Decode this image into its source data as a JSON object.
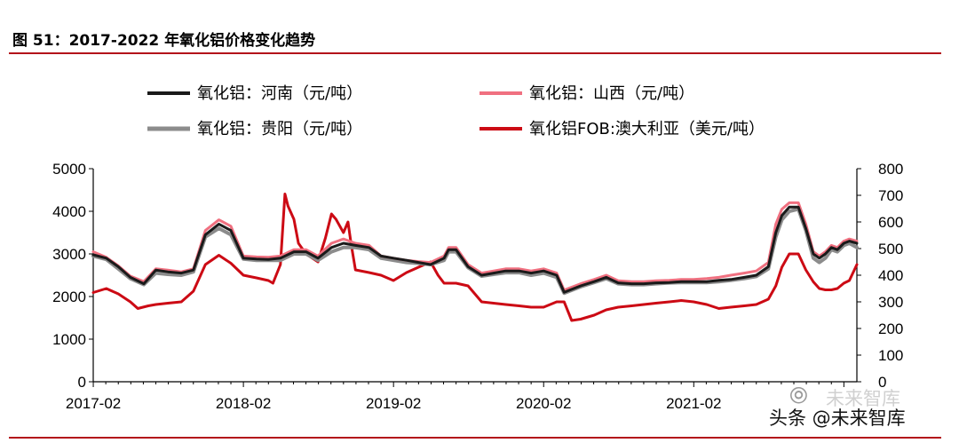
{
  "figure_title": "图 51：2017-2022 年氧化铝价格变化趋势",
  "watermarks": {
    "icon": "wechat-icon",
    "secondary": "未来智库",
    "primary": "头条 @未来智库"
  },
  "chart_data": {
    "type": "line",
    "title": "",
    "xlabel": "",
    "ylabel": "",
    "x_tick_labels": [
      "2017-02",
      "2018-02",
      "2019-02",
      "2020-02",
      "2021-02"
    ],
    "x_range": [
      2017.083,
      2022.17
    ],
    "y_left": {
      "range": [
        0,
        5000
      ],
      "ticks": [
        "0",
        "1000",
        "2000",
        "3000",
        "4000",
        "5000"
      ]
    },
    "y_right": {
      "range": [
        0,
        800
      ],
      "ticks": [
        "0",
        "100",
        "200",
        "300",
        "400",
        "500",
        "600",
        "700",
        "800"
      ]
    },
    "grid": false,
    "legend_position": "top",
    "colors": {
      "henan": "#1a1a1a",
      "shanxi": "#f07080",
      "guiyang": "#8c8c8c",
      "fob": "#cc0a14"
    },
    "series": [
      {
        "name": "氧化铝：河南（元/吨）",
        "axis": "left",
        "color": "#1a1a1a",
        "width": 3,
        "points": [
          [
            2017.083,
            2980
          ],
          [
            2017.17,
            2900
          ],
          [
            2017.25,
            2700
          ],
          [
            2017.33,
            2450
          ],
          [
            2017.42,
            2300
          ],
          [
            2017.5,
            2620
          ],
          [
            2017.58,
            2580
          ],
          [
            2017.67,
            2550
          ],
          [
            2017.75,
            2620
          ],
          [
            2017.83,
            3450
          ],
          [
            2017.92,
            3700
          ],
          [
            2018.0,
            3550
          ],
          [
            2018.083,
            2900
          ],
          [
            2018.17,
            2880
          ],
          [
            2018.25,
            2870
          ],
          [
            2018.33,
            2900
          ],
          [
            2018.42,
            3050
          ],
          [
            2018.5,
            3050
          ],
          [
            2018.58,
            2900
          ],
          [
            2018.67,
            3150
          ],
          [
            2018.75,
            3250
          ],
          [
            2018.83,
            3200
          ],
          [
            2018.92,
            3150
          ],
          [
            2019.0,
            2950
          ],
          [
            2019.083,
            2900
          ],
          [
            2019.17,
            2850
          ],
          [
            2019.25,
            2800
          ],
          [
            2019.33,
            2750
          ],
          [
            2019.42,
            2900
          ],
          [
            2019.45,
            3100
          ],
          [
            2019.5,
            3100
          ],
          [
            2019.58,
            2700
          ],
          [
            2019.67,
            2500
          ],
          [
            2019.75,
            2550
          ],
          [
            2019.83,
            2600
          ],
          [
            2019.92,
            2600
          ],
          [
            2020.0,
            2550
          ],
          [
            2020.083,
            2600
          ],
          [
            2020.17,
            2500
          ],
          [
            2020.22,
            2100
          ],
          [
            2020.33,
            2250
          ],
          [
            2020.42,
            2350
          ],
          [
            2020.5,
            2450
          ],
          [
            2020.58,
            2320
          ],
          [
            2020.67,
            2300
          ],
          [
            2020.75,
            2300
          ],
          [
            2020.83,
            2320
          ],
          [
            2020.92,
            2330
          ],
          [
            2021.0,
            2350
          ],
          [
            2021.083,
            2350
          ],
          [
            2021.17,
            2350
          ],
          [
            2021.25,
            2380
          ],
          [
            2021.33,
            2400
          ],
          [
            2021.42,
            2450
          ],
          [
            2021.5,
            2500
          ],
          [
            2021.58,
            2700
          ],
          [
            2021.63,
            3500
          ],
          [
            2021.67,
            3900
          ],
          [
            2021.72,
            4100
          ],
          [
            2021.78,
            4100
          ],
          [
            2021.83,
            3600
          ],
          [
            2021.88,
            3000
          ],
          [
            2021.92,
            2900
          ],
          [
            2021.96,
            3000
          ],
          [
            2022.0,
            3150
          ],
          [
            2022.04,
            3100
          ],
          [
            2022.083,
            3250
          ],
          [
            2022.12,
            3300
          ],
          [
            2022.17,
            3250
          ]
        ]
      },
      {
        "name": "氧化铝：山西（元/吨）",
        "axis": "left",
        "color": "#f07080",
        "width": 3,
        "points": [
          [
            2017.083,
            3050
          ],
          [
            2017.17,
            2920
          ],
          [
            2017.25,
            2720
          ],
          [
            2017.33,
            2480
          ],
          [
            2017.42,
            2350
          ],
          [
            2017.5,
            2650
          ],
          [
            2017.58,
            2620
          ],
          [
            2017.67,
            2580
          ],
          [
            2017.75,
            2650
          ],
          [
            2017.83,
            3550
          ],
          [
            2017.92,
            3800
          ],
          [
            2018.0,
            3650
          ],
          [
            2018.083,
            2950
          ],
          [
            2018.17,
            2930
          ],
          [
            2018.25,
            2920
          ],
          [
            2018.33,
            2950
          ],
          [
            2018.42,
            3100
          ],
          [
            2018.5,
            3100
          ],
          [
            2018.58,
            2950
          ],
          [
            2018.67,
            3250
          ],
          [
            2018.75,
            3350
          ],
          [
            2018.83,
            3250
          ],
          [
            2018.92,
            3200
          ],
          [
            2019.0,
            2950
          ],
          [
            2019.083,
            2900
          ],
          [
            2019.17,
            2850
          ],
          [
            2019.25,
            2820
          ],
          [
            2019.33,
            2800
          ],
          [
            2019.42,
            2950
          ],
          [
            2019.45,
            3150
          ],
          [
            2019.5,
            3150
          ],
          [
            2019.58,
            2750
          ],
          [
            2019.67,
            2550
          ],
          [
            2019.75,
            2600
          ],
          [
            2019.83,
            2650
          ],
          [
            2019.92,
            2650
          ],
          [
            2020.0,
            2600
          ],
          [
            2020.083,
            2650
          ],
          [
            2020.17,
            2550
          ],
          [
            2020.22,
            2150
          ],
          [
            2020.33,
            2300
          ],
          [
            2020.42,
            2400
          ],
          [
            2020.5,
            2500
          ],
          [
            2020.58,
            2370
          ],
          [
            2020.67,
            2350
          ],
          [
            2020.75,
            2350
          ],
          [
            2020.83,
            2370
          ],
          [
            2020.92,
            2380
          ],
          [
            2021.0,
            2400
          ],
          [
            2021.083,
            2400
          ],
          [
            2021.17,
            2420
          ],
          [
            2021.25,
            2450
          ],
          [
            2021.33,
            2500
          ],
          [
            2021.42,
            2550
          ],
          [
            2021.5,
            2600
          ],
          [
            2021.58,
            2800
          ],
          [
            2021.63,
            3700
          ],
          [
            2021.67,
            4050
          ],
          [
            2021.72,
            4200
          ],
          [
            2021.78,
            4200
          ],
          [
            2021.83,
            3700
          ],
          [
            2021.88,
            3050
          ],
          [
            2021.92,
            2950
          ],
          [
            2021.96,
            3050
          ],
          [
            2022.0,
            3200
          ],
          [
            2022.04,
            3150
          ],
          [
            2022.083,
            3300
          ],
          [
            2022.12,
            3350
          ],
          [
            2022.17,
            3300
          ]
        ]
      },
      {
        "name": "氧化铝：贵阳（元/吨）",
        "axis": "left",
        "color": "#8c8c8c",
        "width": 4,
        "points": [
          [
            2017.083,
            2950
          ],
          [
            2017.17,
            2870
          ],
          [
            2017.25,
            2650
          ],
          [
            2017.33,
            2420
          ],
          [
            2017.42,
            2280
          ],
          [
            2017.5,
            2550
          ],
          [
            2017.58,
            2520
          ],
          [
            2017.67,
            2500
          ],
          [
            2017.75,
            2580
          ],
          [
            2017.83,
            3400
          ],
          [
            2017.92,
            3600
          ],
          [
            2018.0,
            3450
          ],
          [
            2018.083,
            2880
          ],
          [
            2018.17,
            2850
          ],
          [
            2018.25,
            2850
          ],
          [
            2018.33,
            2850
          ],
          [
            2018.42,
            3000
          ],
          [
            2018.5,
            3000
          ],
          [
            2018.58,
            2850
          ],
          [
            2018.67,
            3050
          ],
          [
            2018.75,
            3150
          ],
          [
            2018.83,
            3150
          ],
          [
            2018.92,
            3100
          ],
          [
            2019.0,
            2900
          ],
          [
            2019.083,
            2850
          ],
          [
            2019.17,
            2800
          ],
          [
            2019.25,
            2780
          ],
          [
            2019.33,
            2750
          ],
          [
            2019.42,
            2850
          ],
          [
            2019.45,
            3050
          ],
          [
            2019.5,
            3050
          ],
          [
            2019.58,
            2680
          ],
          [
            2019.67,
            2480
          ],
          [
            2019.75,
            2520
          ],
          [
            2019.83,
            2560
          ],
          [
            2019.92,
            2560
          ],
          [
            2020.0,
            2500
          ],
          [
            2020.083,
            2550
          ],
          [
            2020.17,
            2450
          ],
          [
            2020.22,
            2080
          ],
          [
            2020.33,
            2230
          ],
          [
            2020.42,
            2330
          ],
          [
            2020.5,
            2420
          ],
          [
            2020.58,
            2300
          ],
          [
            2020.67,
            2280
          ],
          [
            2020.75,
            2280
          ],
          [
            2020.83,
            2300
          ],
          [
            2020.92,
            2320
          ],
          [
            2021.0,
            2330
          ],
          [
            2021.083,
            2330
          ],
          [
            2021.17,
            2330
          ],
          [
            2021.25,
            2350
          ],
          [
            2021.33,
            2380
          ],
          [
            2021.42,
            2420
          ],
          [
            2021.5,
            2470
          ],
          [
            2021.58,
            2650
          ],
          [
            2021.63,
            3400
          ],
          [
            2021.67,
            3800
          ],
          [
            2021.72,
            4000
          ],
          [
            2021.78,
            4050
          ],
          [
            2021.83,
            3550
          ],
          [
            2021.88,
            2900
          ],
          [
            2021.92,
            2800
          ],
          [
            2021.96,
            2900
          ],
          [
            2022.0,
            3100
          ],
          [
            2022.04,
            3050
          ],
          [
            2022.083,
            3200
          ],
          [
            2022.12,
            3250
          ],
          [
            2022.17,
            3150
          ]
        ]
      },
      {
        "name": "氧化铝FOB:澳大利亚（美元/吨）",
        "axis": "right",
        "color": "#cc0a14",
        "width": 3,
        "points": [
          [
            2017.083,
            335
          ],
          [
            2017.17,
            350
          ],
          [
            2017.25,
            330
          ],
          [
            2017.33,
            300
          ],
          [
            2017.38,
            275
          ],
          [
            2017.45,
            285
          ],
          [
            2017.5,
            290
          ],
          [
            2017.58,
            295
          ],
          [
            2017.67,
            300
          ],
          [
            2017.75,
            340
          ],
          [
            2017.83,
            440
          ],
          [
            2017.92,
            475
          ],
          [
            2018.0,
            445
          ],
          [
            2018.083,
            400
          ],
          [
            2018.17,
            390
          ],
          [
            2018.25,
            380
          ],
          [
            2018.28,
            370
          ],
          [
            2018.33,
            440
          ],
          [
            2018.36,
            705
          ],
          [
            2018.38,
            660
          ],
          [
            2018.42,
            610
          ],
          [
            2018.45,
            520
          ],
          [
            2018.5,
            480
          ],
          [
            2018.58,
            450
          ],
          [
            2018.63,
            540
          ],
          [
            2018.67,
            630
          ],
          [
            2018.7,
            610
          ],
          [
            2018.75,
            560
          ],
          [
            2018.78,
            600
          ],
          [
            2018.8,
            520
          ],
          [
            2018.83,
            420
          ],
          [
            2018.92,
            410
          ],
          [
            2019.0,
            400
          ],
          [
            2019.083,
            380
          ],
          [
            2019.17,
            410
          ],
          [
            2019.25,
            430
          ],
          [
            2019.33,
            450
          ],
          [
            2019.38,
            400
          ],
          [
            2019.42,
            370
          ],
          [
            2019.5,
            370
          ],
          [
            2019.58,
            360
          ],
          [
            2019.67,
            300
          ],
          [
            2019.75,
            295
          ],
          [
            2019.83,
            290
          ],
          [
            2019.92,
            285
          ],
          [
            2020.0,
            280
          ],
          [
            2020.083,
            280
          ],
          [
            2020.17,
            300
          ],
          [
            2020.22,
            300
          ],
          [
            2020.27,
            230
          ],
          [
            2020.33,
            235
          ],
          [
            2020.42,
            250
          ],
          [
            2020.5,
            270
          ],
          [
            2020.58,
            280
          ],
          [
            2020.67,
            285
          ],
          [
            2020.75,
            290
          ],
          [
            2020.83,
            295
          ],
          [
            2020.92,
            300
          ],
          [
            2021.0,
            305
          ],
          [
            2021.083,
            300
          ],
          [
            2021.17,
            290
          ],
          [
            2021.25,
            275
          ],
          [
            2021.33,
            280
          ],
          [
            2021.42,
            285
          ],
          [
            2021.5,
            290
          ],
          [
            2021.58,
            310
          ],
          [
            2021.63,
            360
          ],
          [
            2021.67,
            430
          ],
          [
            2021.72,
            480
          ],
          [
            2021.78,
            480
          ],
          [
            2021.83,
            420
          ],
          [
            2021.88,
            375
          ],
          [
            2021.92,
            350
          ],
          [
            2021.96,
            345
          ],
          [
            2022.0,
            345
          ],
          [
            2022.04,
            350
          ],
          [
            2022.083,
            370
          ],
          [
            2022.12,
            380
          ],
          [
            2022.17,
            440
          ]
        ]
      }
    ]
  }
}
